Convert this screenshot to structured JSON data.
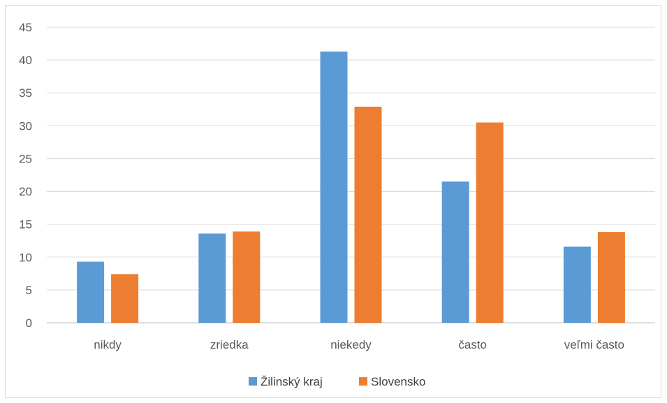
{
  "chart_data": {
    "type": "bar",
    "categories": [
      "nikdy",
      "zriedka",
      "niekedy",
      "často",
      "veľmi často"
    ],
    "series": [
      {
        "name": "Žilinský kraj",
        "color": "#5b9bd5",
        "values": [
          9.3,
          13.6,
          41.3,
          21.5,
          11.6
        ]
      },
      {
        "name": "Slovensko",
        "color": "#ed7d31",
        "values": [
          7.4,
          13.9,
          32.9,
          30.5,
          13.8
        ]
      }
    ],
    "ylim": [
      0,
      45
    ],
    "yticks": [
      "0",
      "5",
      "10",
      "15",
      "20",
      "25",
      "30",
      "35",
      "40",
      "45"
    ],
    "grid": true,
    "legend_position": "bottom",
    "title": "",
    "xlabel": "",
    "ylabel": ""
  }
}
